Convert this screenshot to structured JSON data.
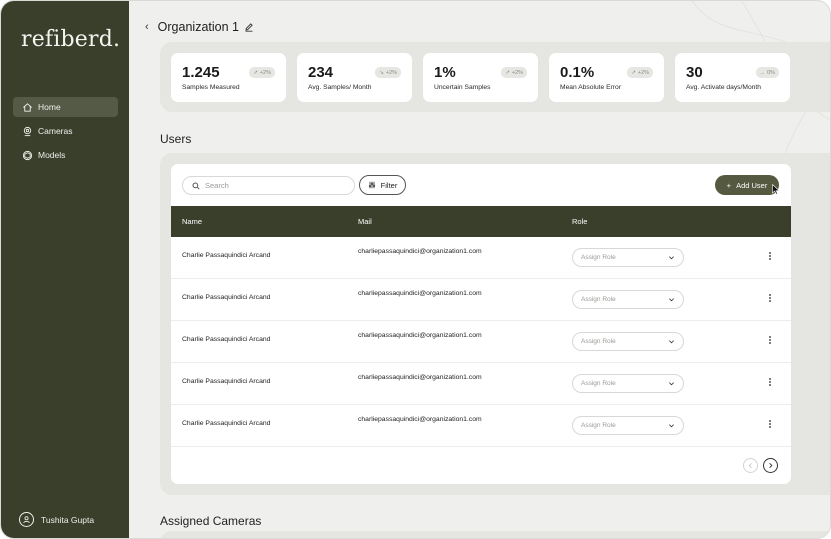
{
  "brand": {
    "logo_text": "refiberd."
  },
  "sidebar": {
    "items": [
      {
        "label": "Home",
        "icon": "home-icon",
        "active": true
      },
      {
        "label": "Cameras",
        "icon": "camera-icon",
        "active": false
      },
      {
        "label": "Models",
        "icon": "models-icon",
        "active": false
      }
    ],
    "user": {
      "name": "Tushita Gupta",
      "icon": "user-avatar-icon"
    }
  },
  "header": {
    "title": "Organization 1",
    "back_icon": "chevron-left-icon",
    "edit_icon": "edit-icon"
  },
  "stats": [
    {
      "value": "1.245",
      "label": "Samples Measured",
      "badge": "+2%",
      "trend": "up"
    },
    {
      "value": "234",
      "label": "Avg. Samples/ Month",
      "badge": "+2%",
      "trend": "down"
    },
    {
      "value": "1%",
      "label": "Uncertain Samples",
      "badge": "+2%",
      "trend": "up"
    },
    {
      "value": "0.1%",
      "label": "Mean Absolute Error",
      "badge": "+2%",
      "trend": "up"
    },
    {
      "value": "30",
      "label": "Avg. Activate days/Month",
      "badge": "0%",
      "trend": "flat"
    }
  ],
  "users": {
    "section_title": "Users",
    "search_placeholder": "Search",
    "filter_label": "Filter",
    "add_user_label": "Add User",
    "columns": {
      "name": "Name",
      "mail": "Mail",
      "role": "Role"
    },
    "role_placeholder": "Assign Role",
    "rows": [
      {
        "name": "Charlie Passaquindici Arcand",
        "mail": "charliepassaquindici@organization1.com"
      },
      {
        "name": "Charlie Passaquindici Arcand",
        "mail": "charliepassaquindici@organization1.com"
      },
      {
        "name": "Charlie Passaquindici Arcand",
        "mail": "charliepassaquindici@organization1.com"
      },
      {
        "name": "Charlie Passaquindici Arcand",
        "mail": "charliepassaquindici@organization1.com"
      },
      {
        "name": "Charlie Passaquindici Arcand",
        "mail": "charliepassaquindici@organization1.com"
      }
    ]
  },
  "cameras": {
    "section_title": "Assigned Cameras"
  },
  "colors": {
    "sidebar_bg": "#3a3f2c",
    "accent": "#54593f",
    "page_bg": "#efefed"
  }
}
